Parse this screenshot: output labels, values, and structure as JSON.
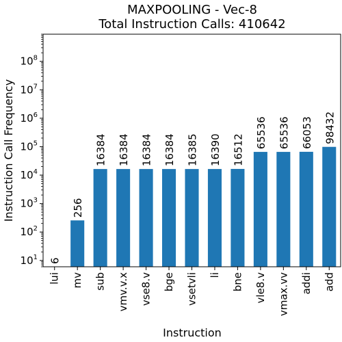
{
  "chart_data": {
    "type": "bar",
    "title": "MAXPOOLING - Vec-8",
    "subtitle": "Total Instruction Calls: 410642",
    "xlabel": "Instruction",
    "ylabel": "Instruction Call Frequency",
    "yscale": "log",
    "ylim": [
      6,
      900000000
    ],
    "grid": false,
    "bar_color": "#1f77b4",
    "categories": [
      "lui",
      "mv",
      "sub",
      "vmv.v.x",
      "vse8.v",
      "bge",
      "vsetvli",
      "li",
      "bne",
      "vle8.v",
      "vmax.vv",
      "addi",
      "add"
    ],
    "values": [
      6,
      256,
      16384,
      16384,
      16384,
      16384,
      16385,
      16390,
      16512,
      65536,
      65536,
      66053,
      98432
    ],
    "data_labels": [
      "6",
      "256",
      "16384",
      "16384",
      "16384",
      "16384",
      "16385",
      "16390",
      "16512",
      "65536",
      "65536",
      "66053",
      "98432"
    ],
    "y_ticks": [
      {
        "exp": 1,
        "base": "10",
        "power": "1"
      },
      {
        "exp": 2,
        "base": "10",
        "power": "2"
      },
      {
        "exp": 3,
        "base": "10",
        "power": "3"
      },
      {
        "exp": 4,
        "base": "10",
        "power": "4"
      },
      {
        "exp": 5,
        "base": "10",
        "power": "5"
      },
      {
        "exp": 6,
        "base": "10",
        "power": "6"
      },
      {
        "exp": 7,
        "base": "10",
        "power": "7"
      },
      {
        "exp": 8,
        "base": "10",
        "power": "8"
      }
    ]
  }
}
